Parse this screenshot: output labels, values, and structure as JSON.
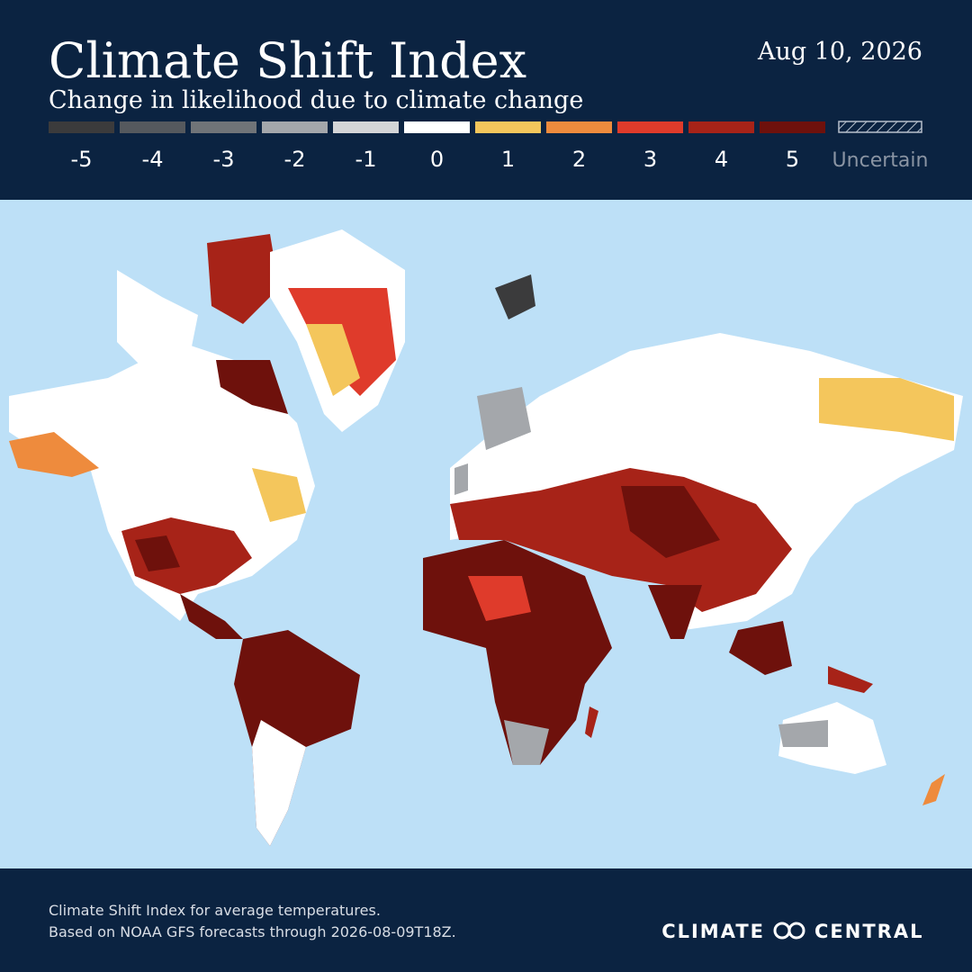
{
  "header": {
    "title": "Climate Shift Index",
    "subtitle": "Change in likelihood due to climate change",
    "date": "Aug 10, 2026"
  },
  "legend": [
    {
      "label": -5,
      "color": "#3b3b3c"
    },
    {
      "label": -4,
      "color": "#55595e"
    },
    {
      "label": -3,
      "color": "#707478"
    },
    {
      "label": -2,
      "color": "#a4a7ab"
    },
    {
      "label": -1,
      "color": "#d4d5d7"
    },
    {
      "label": 0,
      "color": "#ffffff"
    },
    {
      "label": 1,
      "color": "#f4c65c"
    },
    {
      "label": 2,
      "color": "#ee8b3d"
    },
    {
      "label": 3,
      "color": "#df3b2b"
    },
    {
      "label": 4,
      "color": "#a72318"
    },
    {
      "label": 5,
      "color": "#6e110c"
    },
    {
      "label": "Uncertain",
      "color": "hatched"
    }
  ],
  "footer": {
    "lines": [
      "Climate Shift Index for average temperatures.",
      "Based on NOAA GFS forecasts through 2026-08-09T18Z."
    ],
    "logo": {
      "left": "CLIMATE",
      "right": "CENTRAL"
    }
  }
}
